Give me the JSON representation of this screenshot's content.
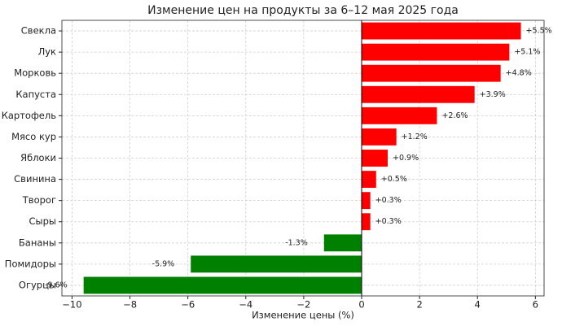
{
  "chart_data": {
    "type": "barh",
    "title": "Изменение цен на продукты за 6–12 мая 2025 года",
    "xlabel": "Изменение цены (%)",
    "categories": [
      "Свекла",
      "Лук",
      "Морковь",
      "Капуста",
      "Картофель",
      "Мясо кур",
      "Яблоки",
      "Свинина",
      "Творог",
      "Сыры",
      "Бананы",
      "Помидоры",
      "Огурцы"
    ],
    "values": [
      5.5,
      5.1,
      4.8,
      3.9,
      2.6,
      1.2,
      0.9,
      0.5,
      0.3,
      0.3,
      -1.3,
      -5.9,
      -9.6
    ],
    "value_labels": [
      "+5.5%",
      "+5.1%",
      "+4.8%",
      "+3.9%",
      "+2.6%",
      "+1.2%",
      "+0.9%",
      "+0.5%",
      "+0.3%",
      "+0.3%",
      "-1.3%",
      "-5.9%",
      "-9.6%"
    ],
    "colors": [
      "#ff0000",
      "#ff0000",
      "#ff0000",
      "#ff0000",
      "#ff0000",
      "#ff0000",
      "#ff0000",
      "#ff0000",
      "#ff0000",
      "#ff0000",
      "#008000",
      "#008000",
      "#008000"
    ],
    "xlim": [
      -10.35,
      6.3
    ],
    "xticks": [
      {
        "value": -10,
        "label": "−10"
      },
      {
        "value": -8,
        "label": "−8"
      },
      {
        "value": -6,
        "label": "−6"
      },
      {
        "value": -4,
        "label": "−4"
      },
      {
        "value": -2,
        "label": "−2"
      },
      0,
      2,
      4,
      6
    ],
    "grid": true
  }
}
